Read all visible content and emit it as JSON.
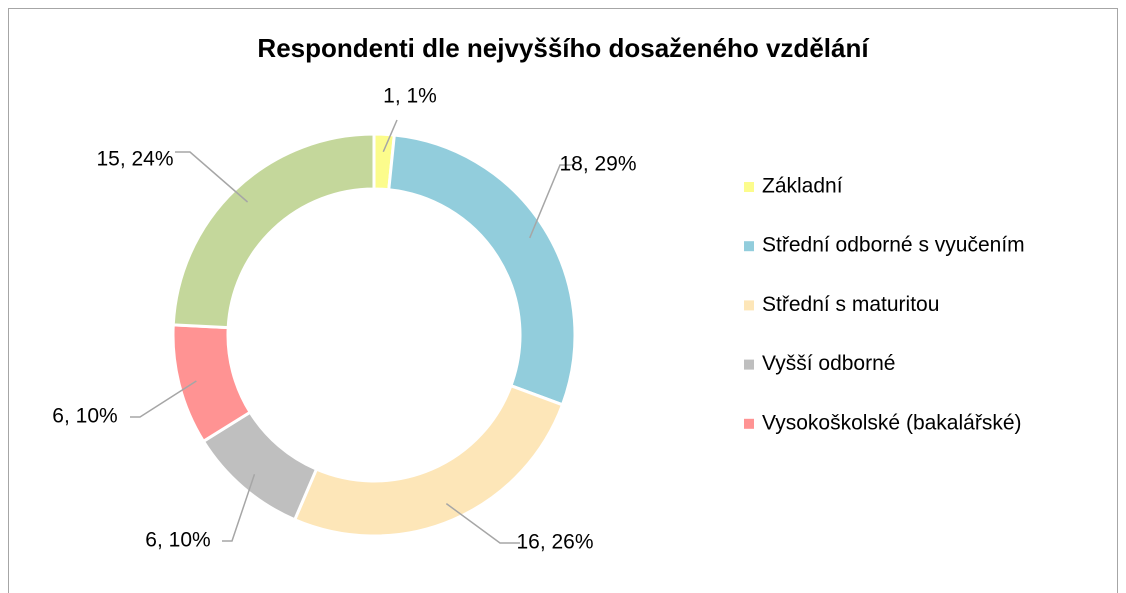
{
  "chart_data": {
    "type": "donut",
    "title": "Respondenti dle nejvyššího dosaženého vzdělání",
    "categories": [
      "Základní",
      "Střední odborné s vyučením",
      "Střední s maturitou",
      "Vyšší odborné",
      "Vysokoškolské (bakalářské)",
      null
    ],
    "values": [
      1,
      18,
      16,
      6,
      6,
      15
    ],
    "value_labels": [
      "1, 1%",
      "18, 29%",
      "16, 26%",
      "6, 10%",
      "6, 10%",
      "15, 24%"
    ],
    "colors": [
      "#fcfc8c",
      "#92cddc",
      "#fde6b8",
      "#bfbfbf",
      "#ff9393",
      "#c4d79b"
    ],
    "legend": "right"
  }
}
